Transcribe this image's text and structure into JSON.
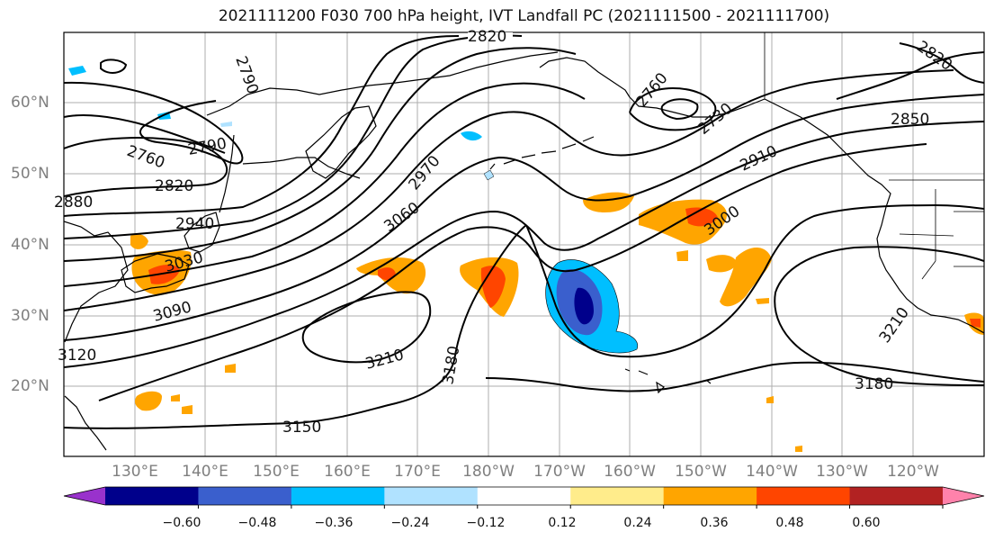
{
  "title": "2021111200 F030 700 hPa height, IVT Landfall PC (2021111500 - 2021111700)",
  "lat_labels": [
    "60°N",
    "50°N",
    "40°N",
    "30°N",
    "20°N"
  ],
  "lon_labels": [
    "130°E",
    "140°E",
    "150°E",
    "160°E",
    "170°E",
    "180°W",
    "170°W",
    "160°W",
    "150°W",
    "140°W",
    "130°W",
    "120°W"
  ],
  "contour_labels": [
    "2820",
    "2790",
    "2760",
    "2790",
    "2760",
    "2820",
    "2820",
    "2730",
    "2850",
    "2880",
    "2940",
    "2910",
    "2970",
    "3030",
    "3060",
    "3000",
    "3090",
    "3210",
    "3180",
    "3210",
    "3180",
    "3120",
    "3150"
  ],
  "colorbar": {
    "ticks": [
      "−0.60",
      "−0.48",
      "−0.36",
      "−0.24",
      "−0.12",
      "0.12",
      "0.24",
      "0.36",
      "0.48",
      "0.60"
    ],
    "colors": [
      "#9932cc",
      "#00008b",
      "#3a5fcd",
      "#00bfff",
      "#b0e2ff",
      "#ffffff",
      "#ffec8b",
      "#ffa500",
      "#ff4500",
      "#b22222",
      "#ff82ab"
    ]
  }
}
